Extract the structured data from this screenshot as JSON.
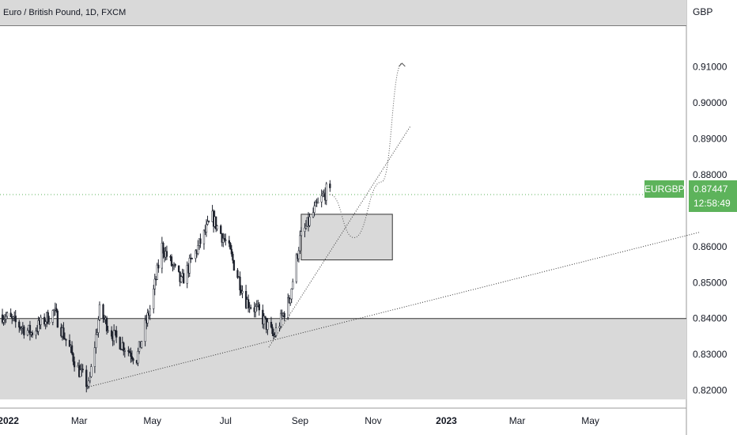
{
  "header": {
    "title": "Euro / British Pound, 1D, FXCM",
    "currency": "GBP"
  },
  "last_price": {
    "symbol": "EURGBP",
    "price": "0.87447",
    "countdown": "12:58:49",
    "color": "#5db35b"
  },
  "colors": {
    "candle": "#1e222d",
    "zone_fill": "#d9d9d9",
    "price_line": "#5db35b"
  },
  "chart_data": {
    "type": "candlestick",
    "symbol": "Euro / British Pound",
    "interval": "1D",
    "source": "FXCM",
    "y_axis_unit": "GBP",
    "y_ticks": [
      "0.91000",
      "0.90000",
      "0.89000",
      "0.88000",
      "0.86000",
      "0.85000",
      "0.84000",
      "0.83000",
      "0.82000"
    ],
    "x_ticks": [
      "2022",
      "Mar",
      "May",
      "Jul",
      "Sep",
      "Nov",
      "2023",
      "Mar",
      "May"
    ],
    "ylim": [
      0.8175,
      0.9165
    ],
    "last_price": 0.87447,
    "close_path": [
      [
        "2022-01-01",
        0.84
      ],
      [
        "2022-01-20",
        0.836
      ],
      [
        "2022-02-08",
        0.842
      ],
      [
        "2022-02-28",
        0.826
      ],
      [
        "2022-03-09",
        0.821
      ],
      [
        "2022-03-18",
        0.842
      ],
      [
        "2022-03-30",
        0.835
      ],
      [
        "2022-04-18",
        0.829
      ],
      [
        "2022-04-30",
        0.844
      ],
      [
        "2022-05-09",
        0.86
      ],
      [
        "2022-05-25",
        0.85
      ],
      [
        "2022-06-14",
        0.864
      ],
      [
        "2022-06-20",
        0.868
      ],
      [
        "2022-07-03",
        0.86
      ],
      [
        "2022-07-18",
        0.845
      ],
      [
        "2022-07-28",
        0.842
      ],
      [
        "2022-08-10",
        0.835
      ],
      [
        "2022-08-23",
        0.845
      ],
      [
        "2022-09-01",
        0.862
      ],
      [
        "2022-09-13",
        0.87
      ],
      [
        "2022-09-24",
        0.876
      ],
      [
        "2022-09-26",
        0.8745
      ]
    ],
    "annotations": [
      {
        "type": "zone",
        "from": "2021-12-20",
        "to": "2023-07-31",
        "y_low": 0.8175,
        "y_high": 0.84
      },
      {
        "type": "zone",
        "from": "2022-09-02",
        "to": "2022-11-17",
        "y_low": 0.8563,
        "y_high": 0.869
      },
      {
        "type": "trendline",
        "points": [
          [
            "2022-03-09",
            0.821
          ],
          [
            "2023-07-31",
            0.864
          ]
        ]
      },
      {
        "type": "trendline",
        "points": [
          [
            "2022-08-06",
            0.832
          ],
          [
            "2022-12-02",
            0.8935
          ]
        ]
      },
      {
        "type": "projection",
        "points": [
          [
            "2022-09-26",
            0.8745
          ],
          [
            "2022-10-16",
            0.8625
          ],
          [
            "2022-11-08",
            0.878
          ],
          [
            "2022-11-25",
            0.911
          ]
        ]
      }
    ]
  }
}
